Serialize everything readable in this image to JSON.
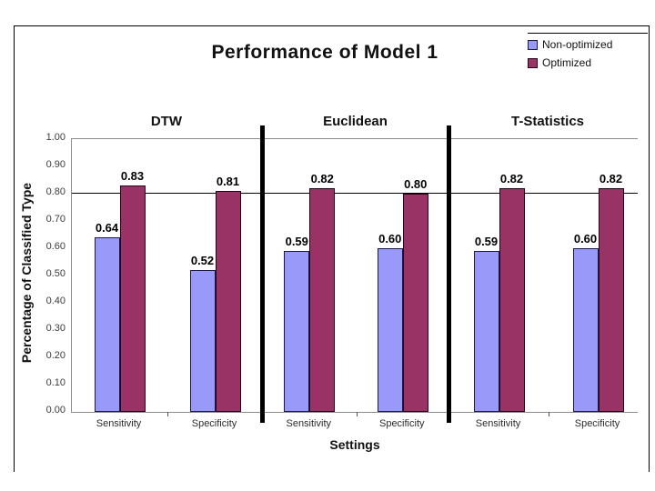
{
  "title": "Performance of Model 1",
  "legend": {
    "items": [
      {
        "label": "Non-optimized",
        "color": "#9999FA"
      },
      {
        "label": "Optimized",
        "color": "#993366"
      }
    ]
  },
  "axes": {
    "y_title": "Percentage of Classified Type",
    "x_title": "Settings"
  },
  "chart_data": {
    "type": "bar",
    "title": "Performance of Model 1",
    "xlabel": "Settings",
    "ylabel": "Percentage of Classified Type",
    "ylim": [
      0.0,
      1.0
    ],
    "ytick_interval": 0.1,
    "ytick_labels": [
      "1.00",
      "0.90",
      "0.80",
      "0.70",
      "0.60",
      "0.50",
      "0.40",
      "0.30",
      "0.20",
      "0.10",
      "0.00"
    ],
    "gridlines_at": [
      0.8
    ],
    "grid": "single-line-at-0.80",
    "legend_position": "top-right",
    "groups": [
      "DTW",
      "Euclidean",
      "T-Statistics"
    ],
    "categories_per_group": [
      "Sensitivity",
      "Specificity"
    ],
    "categories": [
      "DTW Sensitivity",
      "DTW Specificity",
      "Euclidean Sensitivity",
      "Euclidean Specificity",
      "T-Statistics Sensitivity",
      "T-Statistics Specificity"
    ],
    "series": [
      {
        "name": "Non-optimized",
        "color": "#9999FA",
        "values": [
          0.64,
          0.52,
          0.59,
          0.6,
          0.59,
          0.6
        ]
      },
      {
        "name": "Optimized",
        "color": "#993366",
        "values": [
          0.83,
          0.81,
          0.82,
          0.8,
          0.82,
          0.82
        ]
      }
    ],
    "data_labels": [
      [
        "0.64",
        "0.52",
        "0.59",
        "0.60",
        "0.59",
        "0.60"
      ],
      [
        "0.83",
        "0.81",
        "0.82",
        "0.80",
        "0.82",
        "0.82"
      ]
    ]
  }
}
